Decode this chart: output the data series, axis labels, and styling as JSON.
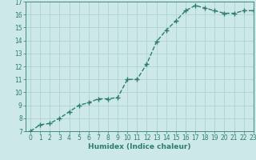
{
  "title": "",
  "xlabel": "Humidex (Indice chaleur)",
  "ylabel": "",
  "x_values": [
    0,
    1,
    2,
    3,
    4,
    5,
    6,
    7,
    8,
    9,
    10,
    11,
    12,
    13,
    14,
    15,
    16,
    17,
    18,
    19,
    20,
    21,
    22,
    23
  ],
  "y_values": [
    7.0,
    7.5,
    7.6,
    8.0,
    8.5,
    9.0,
    9.2,
    9.5,
    9.5,
    9.6,
    11.0,
    11.0,
    12.2,
    13.9,
    14.8,
    15.5,
    16.3,
    16.7,
    16.5,
    16.3,
    16.1,
    16.1,
    16.3,
    16.3
  ],
  "line_color": "#2d7d6f",
  "marker": "+",
  "marker_size": 4,
  "marker_linewidth": 1.0,
  "bg_color": "#cde8e8",
  "grid_color": "#aacece",
  "ylim": [
    7,
    17
  ],
  "xlim": [
    -0.5,
    23
  ],
  "yticks": [
    7,
    8,
    9,
    10,
    11,
    12,
    13,
    14,
    15,
    16,
    17
  ],
  "xticks": [
    0,
    1,
    2,
    3,
    4,
    5,
    6,
    7,
    8,
    9,
    10,
    11,
    12,
    13,
    14,
    15,
    16,
    17,
    18,
    19,
    20,
    21,
    22,
    23
  ],
  "tick_fontsize": 5.5,
  "xlabel_fontsize": 6.5,
  "label_color": "#2d7d6f",
  "linewidth": 1.0,
  "linestyle": "--"
}
